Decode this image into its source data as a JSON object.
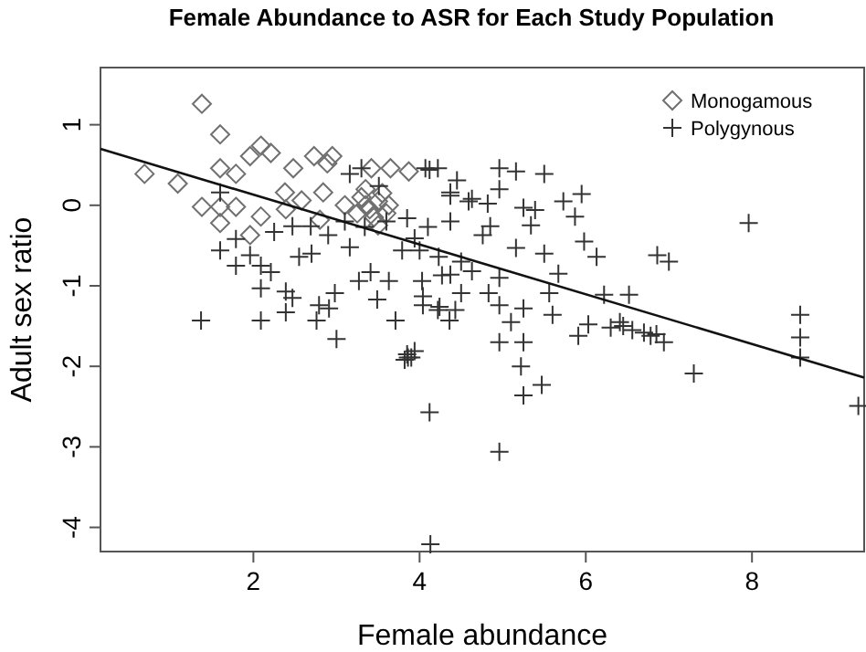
{
  "chart_data": {
    "type": "scatter",
    "title": "Female Abundance to ASR for Each Study Population",
    "xlabel": "Female abundance",
    "ylabel": "Adult sex ratio",
    "xlim": [
      0.16,
      9.35
    ],
    "ylim": [
      -4.3,
      1.71
    ],
    "xticks": [
      2,
      4,
      6,
      8
    ],
    "yticks": [
      -4,
      -3,
      -2,
      -1,
      0,
      1
    ],
    "grid": false,
    "legend": "top right",
    "series": [
      {
        "name": "Monogamous",
        "marker": "diamond",
        "color": "#707070",
        "x": [
          1.38,
          1.6,
          0.69,
          1.09,
          1.6,
          1.79,
          1.96,
          2.09,
          2.21,
          2.48,
          2.73,
          2.95,
          2.89,
          1.38,
          1.6,
          1.79,
          1.6,
          1.96,
          2.09,
          2.38,
          2.58,
          2.84,
          2.39,
          2.8,
          3.42,
          3.65,
          3.87,
          3.35,
          3.3,
          3.4,
          3.5,
          3.45,
          3.25,
          3.6,
          3.55,
          3.35,
          3.5,
          3.63,
          3.1
        ],
        "values": [
          1.26,
          0.88,
          0.39,
          0.27,
          0.46,
          0.39,
          0.61,
          0.74,
          0.65,
          0.46,
          0.61,
          0.61,
          0.52,
          -0.02,
          -0.02,
          -0.02,
          -0.22,
          -0.37,
          -0.14,
          0.16,
          0.06,
          0.16,
          -0.05,
          -0.18,
          0.46,
          0.46,
          0.42,
          0.0,
          0.1,
          -0.05,
          0.05,
          -0.15,
          -0.1,
          -0.1,
          0.15,
          0.2,
          -0.25,
          0.0,
          0.0
        ]
      },
      {
        "name": "Polygynous",
        "marker": "cross",
        "color": "#333333",
        "x": [
          1.6,
          1.79,
          1.6,
          1.79,
          1.96,
          2.09,
          2.21,
          2.09,
          2.39,
          2.47,
          1.37,
          2.09,
          2.39,
          2.76,
          2.91,
          2.98,
          3.0,
          2.79,
          2.7,
          2.55,
          2.25,
          2.47,
          2.69,
          2.9,
          3.16,
          3.27,
          3.41,
          3.49,
          3.71,
          3.86,
          3.94,
          3.63,
          3.79,
          3.94,
          4.03,
          4.04,
          4.22,
          4.36,
          4.27,
          4.5,
          4.37,
          4.59,
          4.37,
          4.22,
          4.07,
          3.16,
          3.3,
          3.51,
          3.6,
          3.85,
          4.1,
          3.34,
          3.1,
          4.12,
          4.96,
          5.16,
          5.5,
          4.45,
          4.37,
          4.63,
          4.96,
          5.25,
          5.39,
          5.73,
          5.95,
          5.87,
          4.85,
          5.34,
          5.98,
          6.13,
          5.16,
          5.5,
          4.5,
          4.23,
          4.0,
          4.37,
          4.04,
          4.24,
          4.43,
          4.96,
          5.1,
          5.25,
          5.6,
          5.91,
          6.03,
          6.22,
          6.52,
          6.41,
          6.56,
          6.78,
          6.94,
          4.96,
          5.25,
          5.22,
          5.25,
          5.47,
          4.12,
          4.96,
          3.9,
          7.3,
          7.96,
          6.86,
          7.0,
          8.58,
          8.58,
          8.58,
          9.28,
          4.96,
          4.83,
          4.63,
          5.56,
          5.67,
          4.82,
          4.76,
          4.13,
          3.82,
          6.45,
          6.7,
          6.85,
          6.3,
          3.85
        ],
        "values": [
          0.16,
          -0.42,
          -0.56,
          -0.75,
          -0.62,
          -0.75,
          -0.83,
          -1.03,
          -1.07,
          -1.15,
          -1.43,
          -1.43,
          -1.33,
          -1.43,
          -1.28,
          -1.09,
          -1.66,
          -1.24,
          -0.6,
          -0.64,
          -0.33,
          -0.26,
          -0.26,
          -0.37,
          -0.52,
          -0.94,
          -0.83,
          -1.17,
          -1.43,
          -1.89,
          -1.81,
          -0.94,
          -0.56,
          -0.41,
          -0.94,
          -1.24,
          -1.3,
          -1.43,
          -0.87,
          -1.09,
          -0.2,
          0.05,
          0.16,
          0.46,
          0.46,
          0.39,
          0.46,
          0.24,
          -0.2,
          -0.16,
          -0.27,
          -0.27,
          -0.2,
          0.44,
          0.46,
          0.42,
          0.39,
          0.31,
          0.12,
          0.08,
          0.2,
          -0.03,
          -0.06,
          0.05,
          0.14,
          -0.14,
          -0.26,
          -0.25,
          -0.45,
          -0.64,
          -0.53,
          -0.6,
          -0.7,
          -0.64,
          -0.56,
          -0.86,
          -1.13,
          -1.26,
          -1.3,
          -1.24,
          -1.45,
          -1.28,
          -1.36,
          -1.62,
          -1.48,
          -1.11,
          -1.11,
          -1.45,
          -1.55,
          -1.62,
          -1.7,
          -1.7,
          -1.7,
          -2.0,
          -2.36,
          -2.23,
          -2.57,
          -3.06,
          -1.89,
          -2.09,
          -0.22,
          -0.62,
          -0.7,
          -1.36,
          -1.64,
          -1.89,
          -2.49,
          -0.9,
          -1.09,
          -0.82,
          -1.09,
          -0.85,
          0.02,
          -0.37,
          -4.21,
          -1.92,
          -1.5,
          -1.58,
          -1.6,
          -1.52,
          -1.85
        ]
      },
      {
        "type": "line",
        "line_style": "solid",
        "color": "#111111",
        "x": [
          0.16,
          9.35
        ],
        "values": [
          0.7,
          -2.14
        ]
      }
    ]
  }
}
